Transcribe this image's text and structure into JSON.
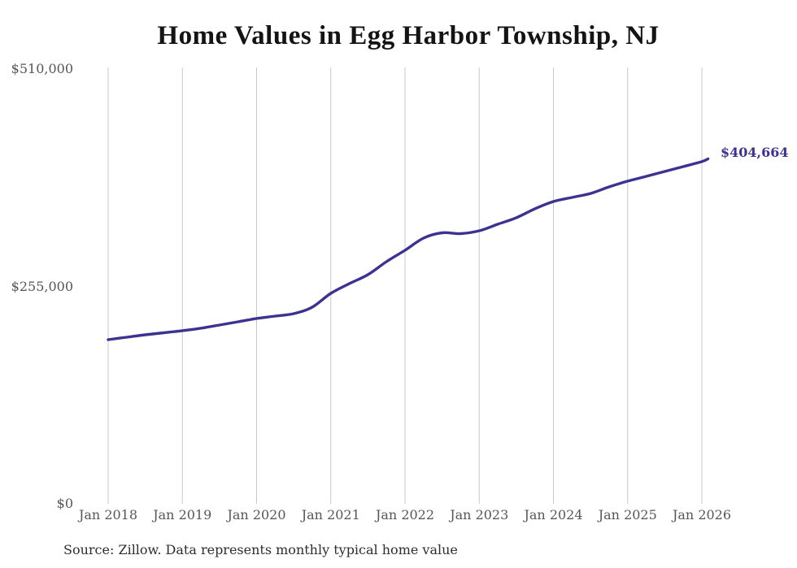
{
  "title": "Home Values in Egg Harbor Township, NJ",
  "source_note": "Source: Zillow. Data represents monthly typical home value",
  "end_label": "$404,664",
  "colors": {
    "line": "#3b3291",
    "end_label": "#3b3291",
    "gridline": "#c9c9c9",
    "axis_text": "#55565a",
    "title_text": "#141414",
    "source_text": "#2d2d2d",
    "background": "#ffffff"
  },
  "chart_data": {
    "type": "line",
    "title": "Home Values in Egg Harbor Township, NJ",
    "ylabel": "",
    "xlabel": "",
    "y_axis": {
      "min": 0,
      "max": 510000
    },
    "y_ticks": [
      {
        "label": "$0",
        "value": 0
      },
      {
        "label": "$255,000",
        "value": 255000
      },
      {
        "label": "$510,000",
        "value": 510000
      }
    ],
    "x_tick_labels": [
      "Jan 2018",
      "Jan 2019",
      "Jan 2020",
      "Jan 2021",
      "Jan 2022",
      "Jan 2023",
      "Jan 2024",
      "Jan 2025",
      "Jan 2026"
    ],
    "grid": "vertical-only",
    "legend": "none",
    "final_value": 404664,
    "final_value_label": "$404,664",
    "series": [
      {
        "name": "Typical home value",
        "points": [
          {
            "date": "2018-01",
            "value": 192600
          },
          {
            "date": "2018-04",
            "value": 195400
          },
          {
            "date": "2018-07",
            "value": 198300
          },
          {
            "date": "2018-10",
            "value": 200700
          },
          {
            "date": "2019-01",
            "value": 203100
          },
          {
            "date": "2019-04",
            "value": 206000
          },
          {
            "date": "2019-07",
            "value": 209700
          },
          {
            "date": "2019-10",
            "value": 213500
          },
          {
            "date": "2020-01",
            "value": 217400
          },
          {
            "date": "2020-04",
            "value": 220200
          },
          {
            "date": "2020-07",
            "value": 223100
          },
          {
            "date": "2020-10",
            "value": 230700
          },
          {
            "date": "2021-01",
            "value": 246900
          },
          {
            "date": "2021-04",
            "value": 258300
          },
          {
            "date": "2021-07",
            "value": 268800
          },
          {
            "date": "2021-10",
            "value": 284100
          },
          {
            "date": "2022-01",
            "value": 297400
          },
          {
            "date": "2022-04",
            "value": 311700
          },
          {
            "date": "2022-07",
            "value": 317900
          },
          {
            "date": "2022-10",
            "value": 317000
          },
          {
            "date": "2023-01",
            "value": 320300
          },
          {
            "date": "2023-04",
            "value": 328000
          },
          {
            "date": "2023-07",
            "value": 335600
          },
          {
            "date": "2023-10",
            "value": 346100
          },
          {
            "date": "2024-01",
            "value": 354600
          },
          {
            "date": "2024-04",
            "value": 359400
          },
          {
            "date": "2024-07",
            "value": 364100
          },
          {
            "date": "2024-10",
            "value": 371800
          },
          {
            "date": "2025-01",
            "value": 378500
          },
          {
            "date": "2025-04",
            "value": 384200
          },
          {
            "date": "2025-07",
            "value": 389900
          },
          {
            "date": "2025-10",
            "value": 395600
          },
          {
            "date": "2026-01",
            "value": 401400
          },
          {
            "date": "2026-02",
            "value": 404664
          }
        ]
      }
    ]
  }
}
